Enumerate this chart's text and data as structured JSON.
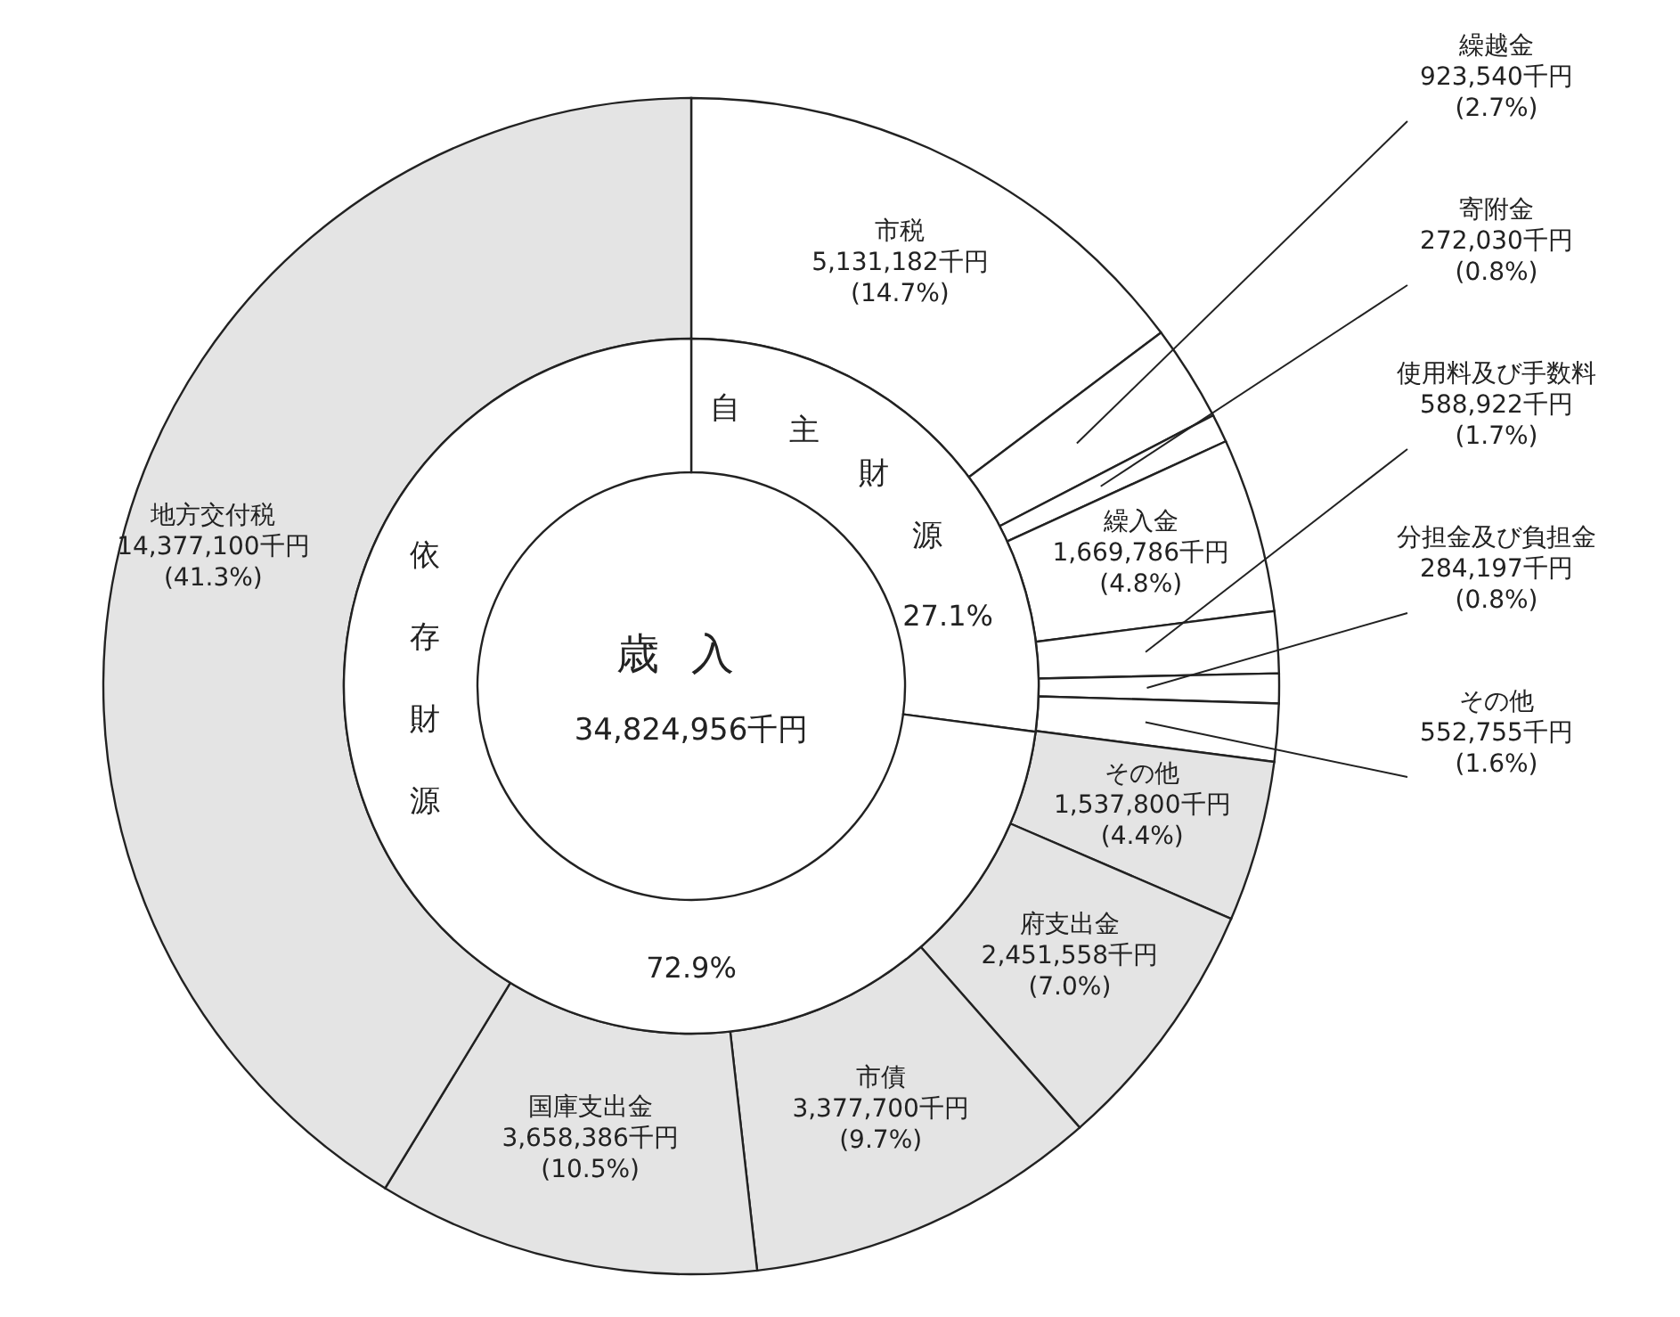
{
  "chart_data": [
    {
      "type": "donut",
      "title": "歳入",
      "subtitle": "34,824,956千円",
      "categories": [
        "市税",
        "繰越金",
        "寄附金",
        "繰入金",
        "使用料及び手数料",
        "分担金及び負担金",
        "その他",
        "その他",
        "府支出金",
        "市債",
        "国庫支出金",
        "地方交付税"
      ],
      "values": [
        5131182,
        923540,
        272030,
        1669786,
        588922,
        284197,
        552755,
        1537800,
        2451558,
        3377700,
        3658386,
        14377100
      ],
      "colors": [
        "#ffffff",
        "#ffffff",
        "#ffffff",
        "#ffffff",
        "#ffffff",
        "#ffffff",
        "#ffffff",
        "#e4e4e4",
        "#e4e4e4",
        "#e4e4e4",
        "#e4e4e4",
        "#e4e4e4"
      ],
      "value_labels": [
        "5,131,182千円\n(14.7%)",
        "923,540千円\n(2.7%)",
        "272,030千円\n(0.8%)",
        "1,669,786千円\n(4.8%)",
        "588,922千円\n(1.7%)",
        "284,197千円\n(0.8%)",
        "552,755千円\n(1.6%)",
        "1,537,800千円\n(4.4%)",
        "2,451,558千円\n(7.0%)",
        "3,377,700千円\n(9.7%)",
        "3,658,386千円\n(10.5%)",
        "14,377,100千円\n(41.3%)"
      ]
    },
    {
      "type": "donut",
      "categories": [
        "自主財源",
        "依存財源"
      ],
      "values": [
        27.1,
        72.9
      ],
      "colors": [
        "#ffffff",
        "#ffffff"
      ],
      "value_labels": [
        "27.1%",
        "72.9%"
      ]
    }
  ]
}
